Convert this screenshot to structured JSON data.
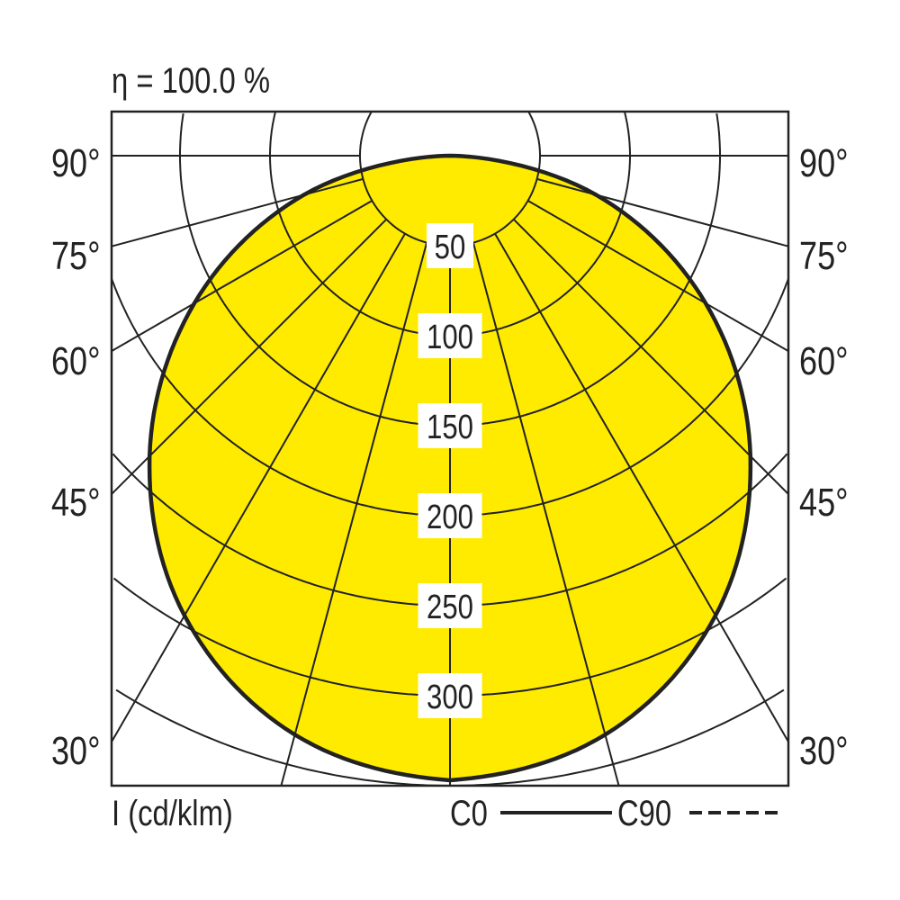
{
  "chart_data": {
    "type": "polar",
    "title": "η = 100.0 %",
    "unit_label": "I (cd/klm)",
    "radial_ticks": [
      50,
      100,
      150,
      200,
      250,
      300
    ],
    "radial_max": 350,
    "angle_tick_labels": [
      "90°",
      "75°",
      "60°",
      "45°",
      "30°"
    ],
    "angle_ticks": [
      90,
      75,
      60,
      45,
      30
    ],
    "grid_angles": [
      0,
      15,
      30,
      45,
      60,
      75,
      90
    ],
    "grid": true,
    "fill_color": "#FFEB00",
    "line_color": "#222222",
    "legend": {
      "c0": "C0",
      "c90": "C90",
      "placement": "bottom-right"
    },
    "series": [
      {
        "name": "C0",
        "style": "solid",
        "angles": [
          0,
          15,
          30,
          45,
          60,
          75,
          90
        ],
        "values": [
          347,
          333,
          295,
          236,
          164,
          84,
          0
        ]
      }
    ]
  }
}
